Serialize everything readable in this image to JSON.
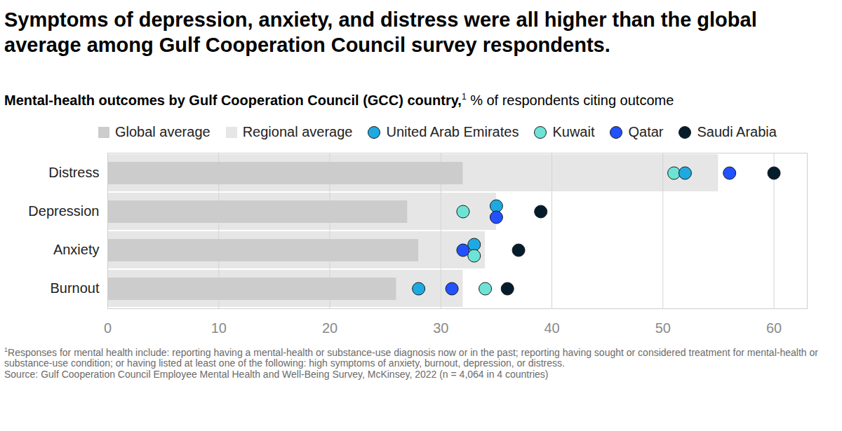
{
  "chart_data": {
    "type": "bar",
    "orientation": "horizontal",
    "title": "Symptoms of depression, anxiety, and distress were all higher than the global average among Gulf Cooperation Council survey respondents.",
    "subtitle": "Mental-health outcomes by Gulf Cooperation Council (GCC) country,",
    "subtitle_note": "1",
    "x_label": "% of respondents citing outcome",
    "categories": [
      "Distress",
      "Depression",
      "Anxiety",
      "Burnout"
    ],
    "series": [
      {
        "name": "Global average",
        "type": "bar",
        "color": "#cccccc",
        "values": [
          32,
          27,
          28,
          26
        ]
      },
      {
        "name": "Regional average",
        "type": "bar",
        "color": "#e6e6e6",
        "values": [
          55,
          35,
          34,
          32
        ]
      },
      {
        "name": "United Arab Emirates",
        "type": "scatter",
        "marker": "circle",
        "color": "#1fa9e1",
        "values": [
          52,
          35,
          33,
          28
        ]
      },
      {
        "name": "Kuwait",
        "type": "scatter",
        "marker": "circle",
        "color": "#6de3d6",
        "values": [
          51,
          32,
          33,
          34
        ]
      },
      {
        "name": "Qatar",
        "type": "scatter",
        "marker": "circle",
        "color": "#2251ff",
        "values": [
          56,
          35,
          32,
          31
        ]
      },
      {
        "name": "Saudi Arabia",
        "type": "scatter",
        "marker": "circle",
        "color": "#051c2c",
        "values": [
          60,
          39,
          37,
          36
        ]
      }
    ],
    "xlim": [
      0,
      63
    ],
    "xticks": [
      0,
      10,
      20,
      30,
      40,
      50,
      60
    ],
    "grid": true,
    "legend": "top",
    "footnotes": [
      {
        "marker": "1",
        "text": "Responses for mental health include: reporting having a mental-health or substance-use diagnosis now or in the past; reporting having sought or considered treatment for mental-health or substance-use condition; or having listed at least one of the following: high symptoms of anxiety, burnout, depression, or distress."
      }
    ],
    "source": "Source: Gulf Cooperation Council Employee Mental Health and Well-Being Survey, McKinsey, 2022 (n = 4,064 in 4 countries)"
  }
}
